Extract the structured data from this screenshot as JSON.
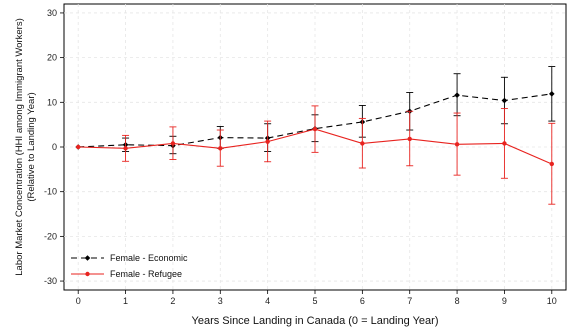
{
  "chart_data": {
    "type": "line",
    "xlabel": "Years Since Landing in Canada (0 = Landing Year)",
    "ylabel": [
      "Labor Market Concentration (HHI among Immigrant Workers)",
      "(Relative to Landing Year)"
    ],
    "x": [
      0,
      1,
      2,
      3,
      4,
      5,
      6,
      7,
      8,
      9,
      10
    ],
    "xlim": [
      -0.3,
      10.3
    ],
    "ylim": [
      -32,
      32
    ],
    "xticks": [
      0,
      1,
      2,
      3,
      4,
      5,
      6,
      7,
      8,
      9,
      10
    ],
    "yticks": [
      -30,
      -20,
      -10,
      0,
      10,
      20,
      30
    ],
    "grid": true,
    "legend_position": "bottom-left",
    "series": [
      {
        "name": "Female - Economic",
        "color": "#000000",
        "line_style": "dashed",
        "marker": "diamond",
        "values": [
          0.0,
          0.5,
          0.3,
          2.1,
          2.0,
          4.1,
          5.6,
          8.0,
          11.6,
          10.4,
          11.9
        ],
        "ci_low": [
          0.0,
          -1.0,
          -1.5,
          -0.3,
          -1.0,
          1.2,
          2.2,
          3.8,
          7.0,
          5.2,
          5.8
        ],
        "ci_high": [
          0.0,
          2.0,
          2.4,
          4.6,
          5.2,
          7.2,
          9.3,
          12.2,
          16.4,
          15.6,
          18.0
        ]
      },
      {
        "name": "Female - Refugee",
        "color": "#e8231f",
        "line_style": "solid",
        "marker": "circle",
        "values": [
          0.0,
          -0.3,
          0.8,
          -0.3,
          1.2,
          4.0,
          0.8,
          1.8,
          0.6,
          0.8,
          -3.8
        ],
        "ci_low": [
          0.0,
          -3.2,
          -2.8,
          -4.3,
          -3.3,
          -1.2,
          -4.7,
          -4.2,
          -6.3,
          -7.0,
          -12.8
        ],
        "ci_high": [
          0.0,
          2.6,
          4.5,
          3.8,
          5.8,
          9.2,
          6.4,
          8.0,
          7.6,
          8.6,
          5.3
        ]
      }
    ]
  }
}
